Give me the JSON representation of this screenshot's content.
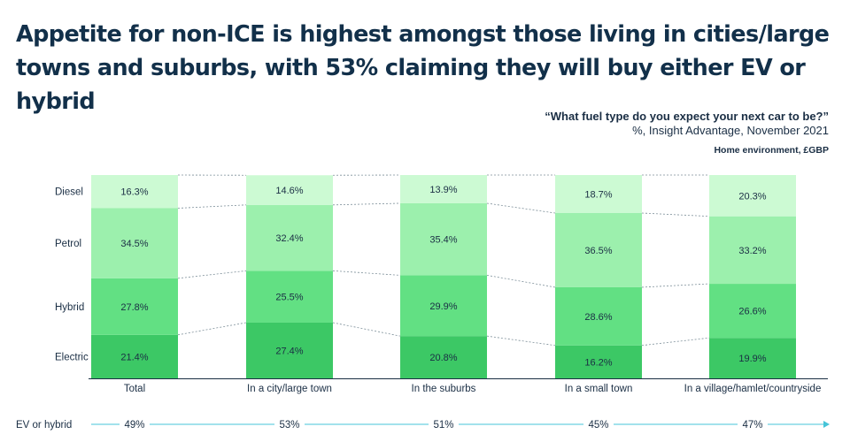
{
  "title": "Appetite for non-ICE is highest amongst those living in cities/large towns and suburbs, with 53% claiming they will buy either EV or hybrid",
  "question": "“What fuel type do you expect your next car to be?”",
  "source": "%, Insight Advantage, November 2021",
  "segment_note": "Home environment, £GBP",
  "chart_data": {
    "type": "bar",
    "stacked": true,
    "ylim": [
      0,
      100
    ],
    "categories": [
      "Total",
      "In a city/large town",
      "In the suburbs",
      "In a small town",
      "In a village/hamlet/countryside"
    ],
    "series": [
      {
        "name": "Electric",
        "color": "#3cc865",
        "values": [
          21.4,
          27.4,
          20.8,
          16.2,
          19.9
        ],
        "labels": [
          "21.4%",
          "27.4%",
          "20.8%",
          "16.2%",
          "19.9%"
        ]
      },
      {
        "name": "Hybrid",
        "color": "#62e083",
        "values": [
          27.8,
          25.5,
          29.9,
          28.6,
          26.6
        ],
        "labels": [
          "27.8%",
          "25.5%",
          "29.9%",
          "28.6%",
          "26.6%"
        ]
      },
      {
        "name": "Petrol",
        "color": "#9cf0ad",
        "values": [
          34.5,
          32.4,
          35.4,
          36.5,
          33.2
        ],
        "labels": [
          "34.5%",
          "32.4%",
          "35.4%",
          "36.5%",
          "33.2%"
        ]
      },
      {
        "name": "Diesel",
        "color": "#ccfad3",
        "values": [
          16.3,
          14.6,
          13.9,
          18.7,
          20.3
        ],
        "labels": [
          "16.3%",
          "14.6%",
          "13.9%",
          "18.7%",
          "20.3%"
        ]
      }
    ],
    "ev_or_hybrid": {
      "label": "EV or hybrid",
      "values": [
        49,
        53,
        51,
        45,
        47
      ],
      "labels": [
        "49%",
        "53%",
        "51%",
        "45%",
        "47%"
      ]
    },
    "connector_lines": true,
    "legend": "left"
  }
}
